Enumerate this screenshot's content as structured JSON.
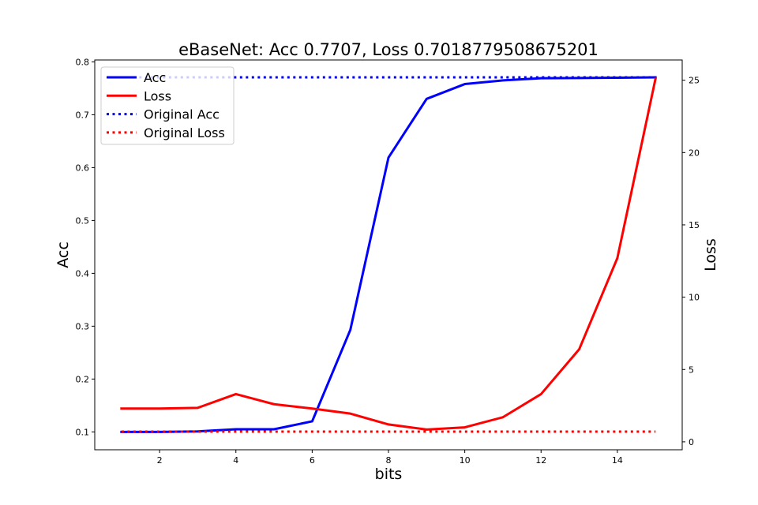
{
  "chart_data": {
    "type": "line",
    "title": "eBaseNet: Acc 0.7707, Loss 0.7018779508675201",
    "xlabel": "bits",
    "ylabel_left": "Acc",
    "ylabel_right": "Loss",
    "x": [
      1,
      2,
      3,
      4,
      5,
      6,
      7,
      8,
      9,
      10,
      11,
      12,
      13,
      14,
      15
    ],
    "xlim": [
      0.3,
      15.7
    ],
    "xticks": [
      2,
      4,
      6,
      8,
      10,
      12,
      14
    ],
    "ylim_left": [
      0.0662,
      0.8036
    ],
    "yticks_left": [
      0.1,
      0.2,
      0.3,
      0.4,
      0.5,
      0.6,
      0.7,
      0.8
    ],
    "ylim_right": [
      -0.55,
      26.4
    ],
    "yticks_right": [
      0,
      5,
      10,
      15,
      20,
      25
    ],
    "grid": false,
    "legend_position": "top-left",
    "series": [
      {
        "name": "Acc",
        "axis": "left",
        "style": "solid",
        "color": "#0000ff",
        "values": [
          0.1,
          0.1,
          0.101,
          0.105,
          0.105,
          0.12,
          0.293,
          0.619,
          0.73,
          0.758,
          0.765,
          0.769,
          0.7695,
          0.77,
          0.7707
        ]
      },
      {
        "name": "Loss",
        "axis": "right",
        "style": "solid",
        "color": "#ff0000",
        "values": [
          2.3,
          2.3,
          2.35,
          3.3,
          2.6,
          2.3,
          1.95,
          1.2,
          0.85,
          1.0,
          1.7,
          3.3,
          6.4,
          12.7,
          25.1
        ]
      },
      {
        "name": "Original Acc",
        "axis": "left",
        "style": "dotted",
        "color": "#0000ff",
        "values": [
          0.7707,
          0.7707,
          0.7707,
          0.7707,
          0.7707,
          0.7707,
          0.7707,
          0.7707,
          0.7707,
          0.7707,
          0.7707,
          0.7707,
          0.7707,
          0.7707,
          0.7707
        ]
      },
      {
        "name": "Original Loss",
        "axis": "right",
        "style": "dotted",
        "color": "#ff0000",
        "values": [
          0.7019,
          0.7019,
          0.7019,
          0.7019,
          0.7019,
          0.7019,
          0.7019,
          0.7019,
          0.7019,
          0.7019,
          0.7019,
          0.7019,
          0.7019,
          0.7019,
          0.7019
        ]
      }
    ]
  }
}
